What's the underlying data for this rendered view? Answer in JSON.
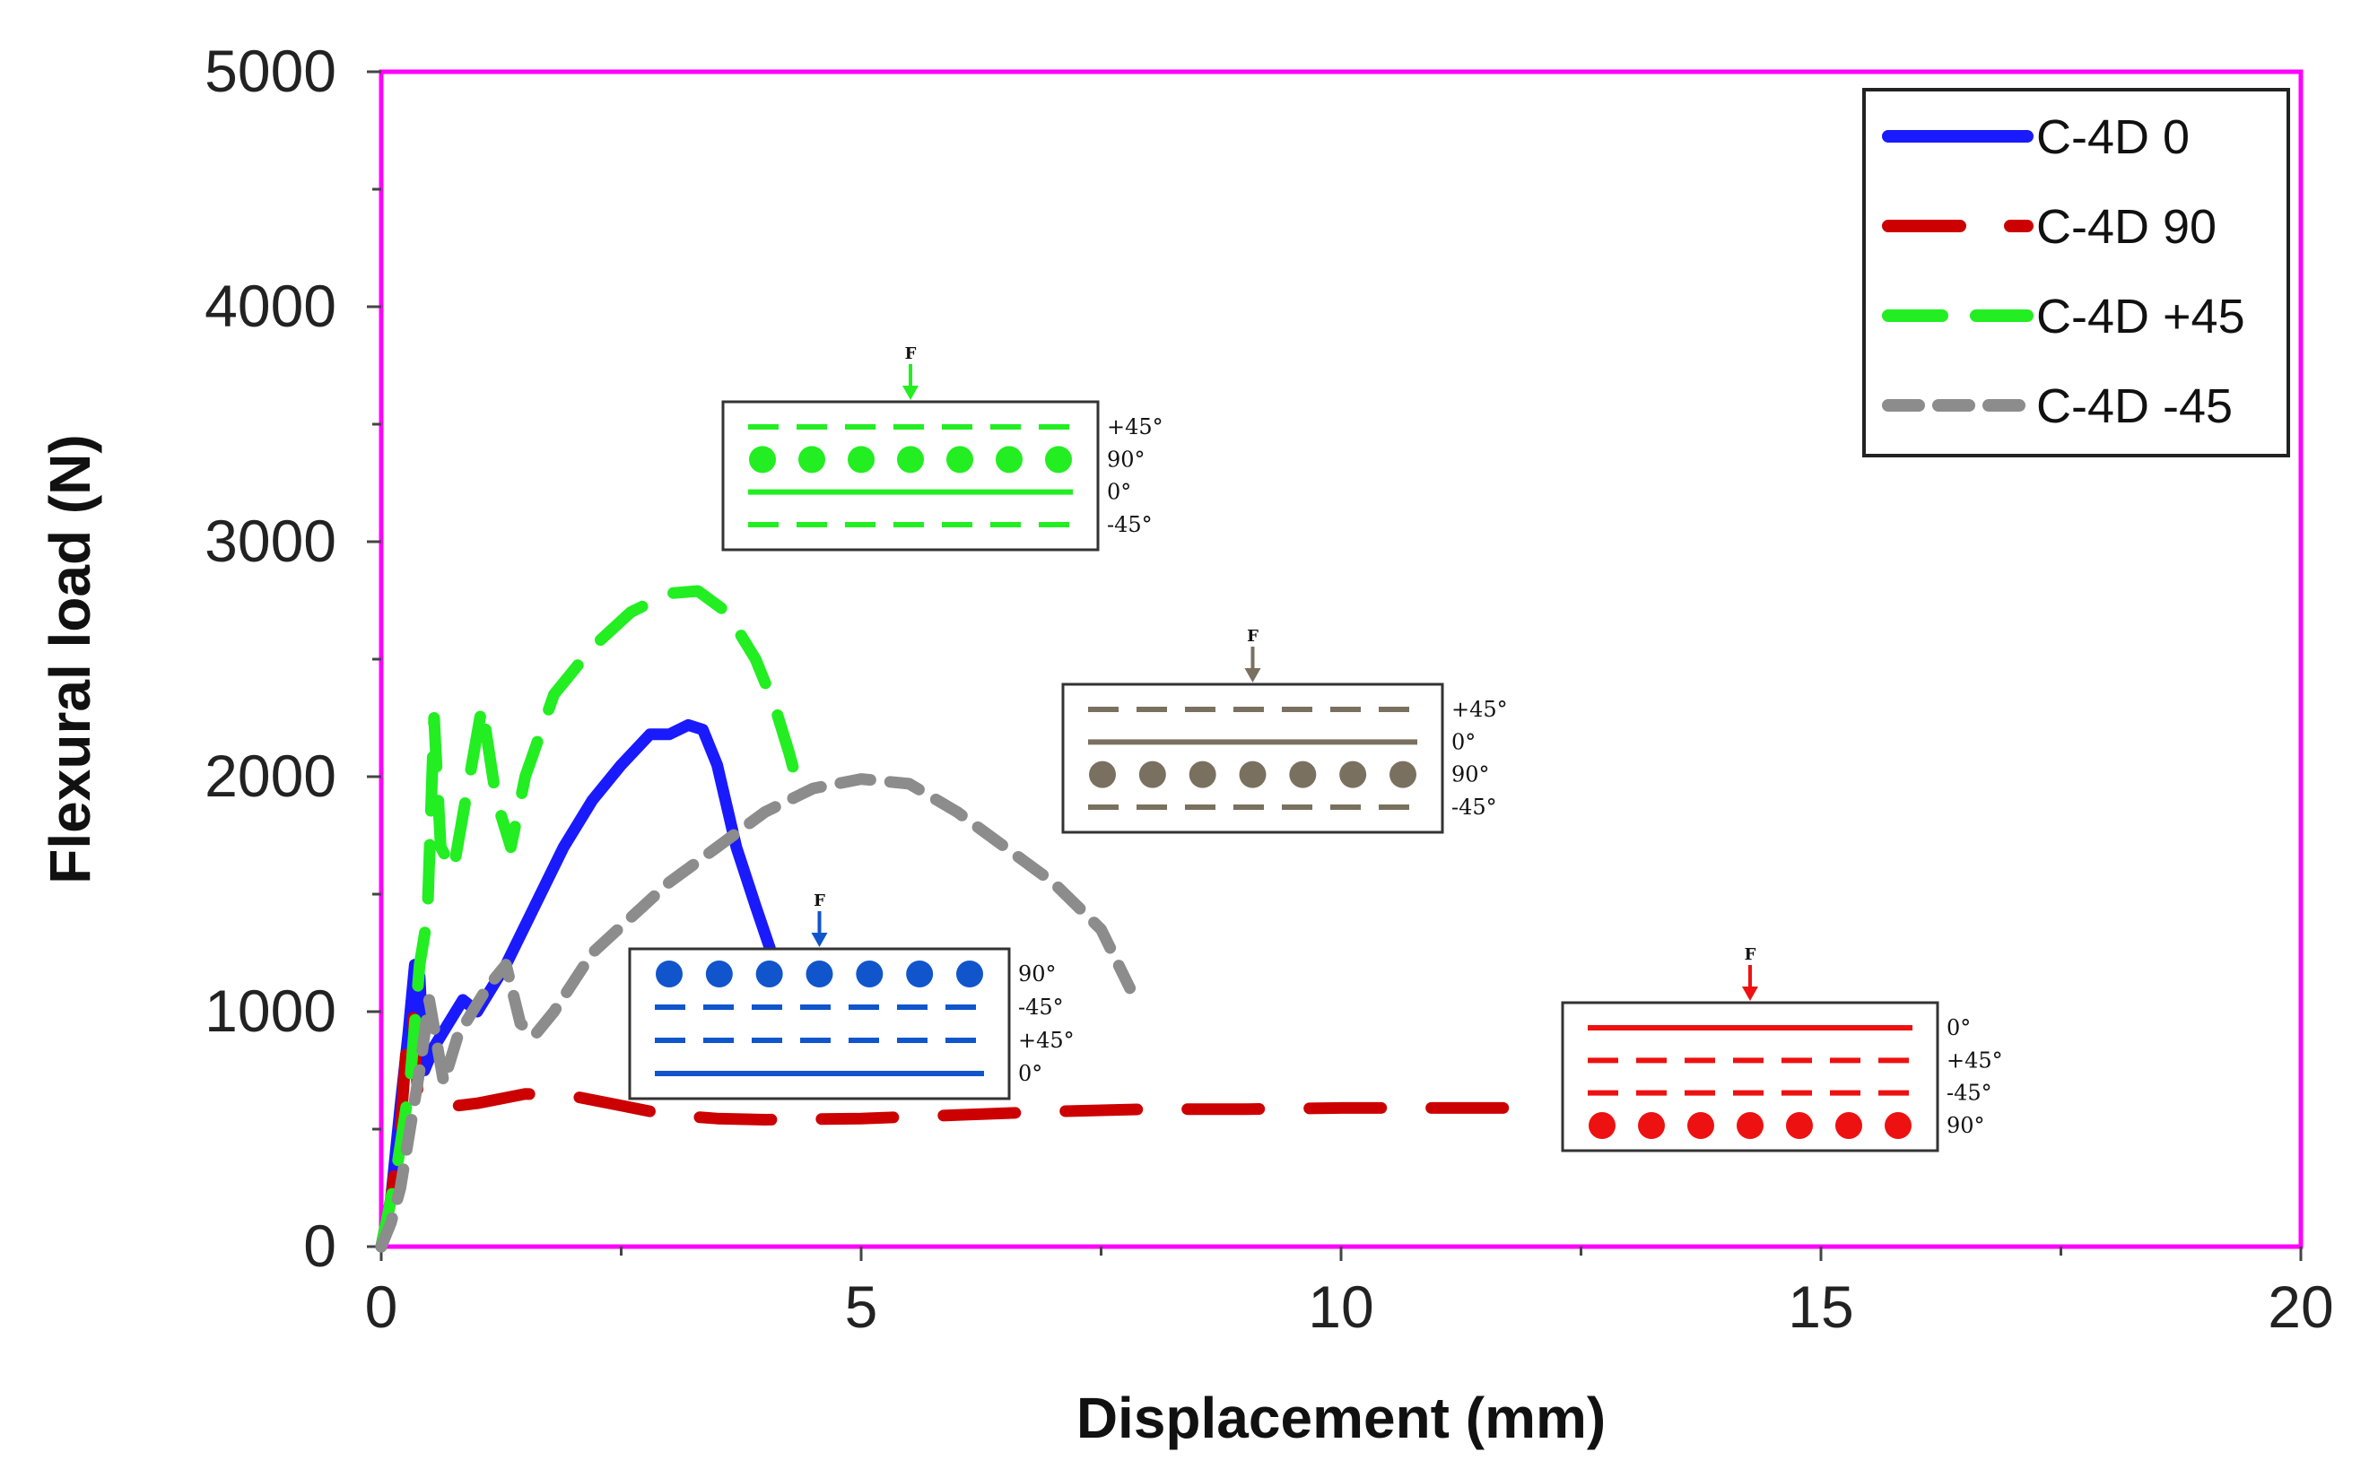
{
  "chart_data": {
    "type": "line",
    "title": "",
    "xlabel": "Displacement (mm)",
    "ylabel": "Flexural load (N)",
    "xlim": [
      0,
      20
    ],
    "ylim": [
      0,
      5000
    ],
    "xticks": [
      0,
      5,
      10,
      15,
      20
    ],
    "yticks": [
      0,
      1000,
      2000,
      3000,
      4000,
      5000
    ],
    "grid": false,
    "legend_position": "top-right",
    "frame_color": "#ff00ff",
    "series": [
      {
        "name": "C-4D 0",
        "color": "#1a1aff",
        "style": "solid",
        "x": [
          0,
          0.1,
          0.2,
          0.28,
          0.35,
          0.4,
          0.45,
          0.55,
          0.7,
          0.85,
          1.0,
          1.3,
          1.6,
          1.9,
          2.2,
          2.5,
          2.8,
          3.0,
          3.2,
          3.35,
          3.5,
          3.7,
          3.9,
          4.05
        ],
        "y": [
          0,
          200,
          600,
          900,
          1200,
          1150,
          750,
          850,
          950,
          1050,
          1000,
          1200,
          1450,
          1700,
          1900,
          2050,
          2180,
          2180,
          2220,
          2200,
          2050,
          1700,
          1450,
          1270
        ]
      },
      {
        "name": "C-4D 90",
        "color": "#cc0000",
        "style": "dashed",
        "x": [
          0,
          0.1,
          0.2,
          0.28,
          0.33,
          0.38,
          0.45,
          0.6,
          1.0,
          1.5,
          2.0,
          2.5,
          3.0,
          3.5,
          4.0,
          5.0,
          6.0,
          7.0,
          8.0,
          9.0,
          10.0,
          11.0,
          12.0
        ],
        "y": [
          0,
          200,
          500,
          950,
          1000,
          650,
          620,
          590,
          610,
          650,
          640,
          600,
          560,
          545,
          540,
          545,
          560,
          575,
          585,
          585,
          590,
          590,
          590
        ]
      },
      {
        "name": "C-4D +45",
        "color": "#22ee22",
        "style": "dashed",
        "x": [
          0,
          0.15,
          0.3,
          0.4,
          0.48,
          0.55,
          0.62,
          0.75,
          0.9,
          1.05,
          1.2,
          1.35,
          1.5,
          1.8,
          2.2,
          2.6,
          3.0,
          3.3,
          3.6,
          3.9,
          4.1,
          4.25,
          4.35
        ],
        "y": [
          0,
          300,
          700,
          1200,
          1400,
          2250,
          1700,
          1600,
          1950,
          2300,
          1900,
          1700,
          2000,
          2350,
          2550,
          2700,
          2780,
          2790,
          2700,
          2500,
          2300,
          2100,
          1950
        ]
      },
      {
        "name": "C-4D -45",
        "color": "#8c8c8c",
        "style": "dashed",
        "x": [
          0,
          0.1,
          0.2,
          0.3,
          0.4,
          0.5,
          0.65,
          0.8,
          0.95,
          1.1,
          1.3,
          1.45,
          1.6,
          1.8,
          2.2,
          2.6,
          3.0,
          3.5,
          4.0,
          4.5,
          5.0,
          5.5,
          6.0,
          6.5,
          7.0,
          7.5,
          7.8
        ],
        "y": [
          0,
          100,
          250,
          500,
          750,
          1050,
          700,
          900,
          1000,
          1100,
          1200,
          950,
          900,
          1000,
          1250,
          1400,
          1550,
          1700,
          1850,
          1950,
          1990,
          1970,
          1850,
          1700,
          1550,
          1350,
          1100
        ]
      }
    ],
    "insets": [
      {
        "name": "+45",
        "color": "#22ee22",
        "force": "F",
        "layers": [
          {
            "type": "dashed",
            "label": "+45°"
          },
          {
            "type": "dots",
            "label": "90°"
          },
          {
            "type": "solid",
            "label": "0°"
          },
          {
            "type": "dashed",
            "label": "-45°"
          }
        ]
      },
      {
        "name": "-45",
        "color": "#7a7060",
        "force": "F",
        "layers": [
          {
            "type": "dashed",
            "label": "+45°"
          },
          {
            "type": "solid",
            "label": "0°"
          },
          {
            "type": "dots",
            "label": "90°"
          },
          {
            "type": "dashed",
            "label": "-45°"
          }
        ]
      },
      {
        "name": "0",
        "color": "#1155cc",
        "force": "F",
        "layers": [
          {
            "type": "dots",
            "label": "90°"
          },
          {
            "type": "dashed",
            "label": "-45°"
          },
          {
            "type": "dashed",
            "label": "+45°"
          },
          {
            "type": "solid",
            "label": "0°"
          }
        ]
      },
      {
        "name": "90",
        "color": "#ee1111",
        "force": "F",
        "layers": [
          {
            "type": "solid",
            "label": "0°"
          },
          {
            "type": "dashed",
            "label": "+45°"
          },
          {
            "type": "dashed",
            "label": "-45°"
          },
          {
            "type": "dots",
            "label": "90°"
          }
        ]
      }
    ]
  }
}
